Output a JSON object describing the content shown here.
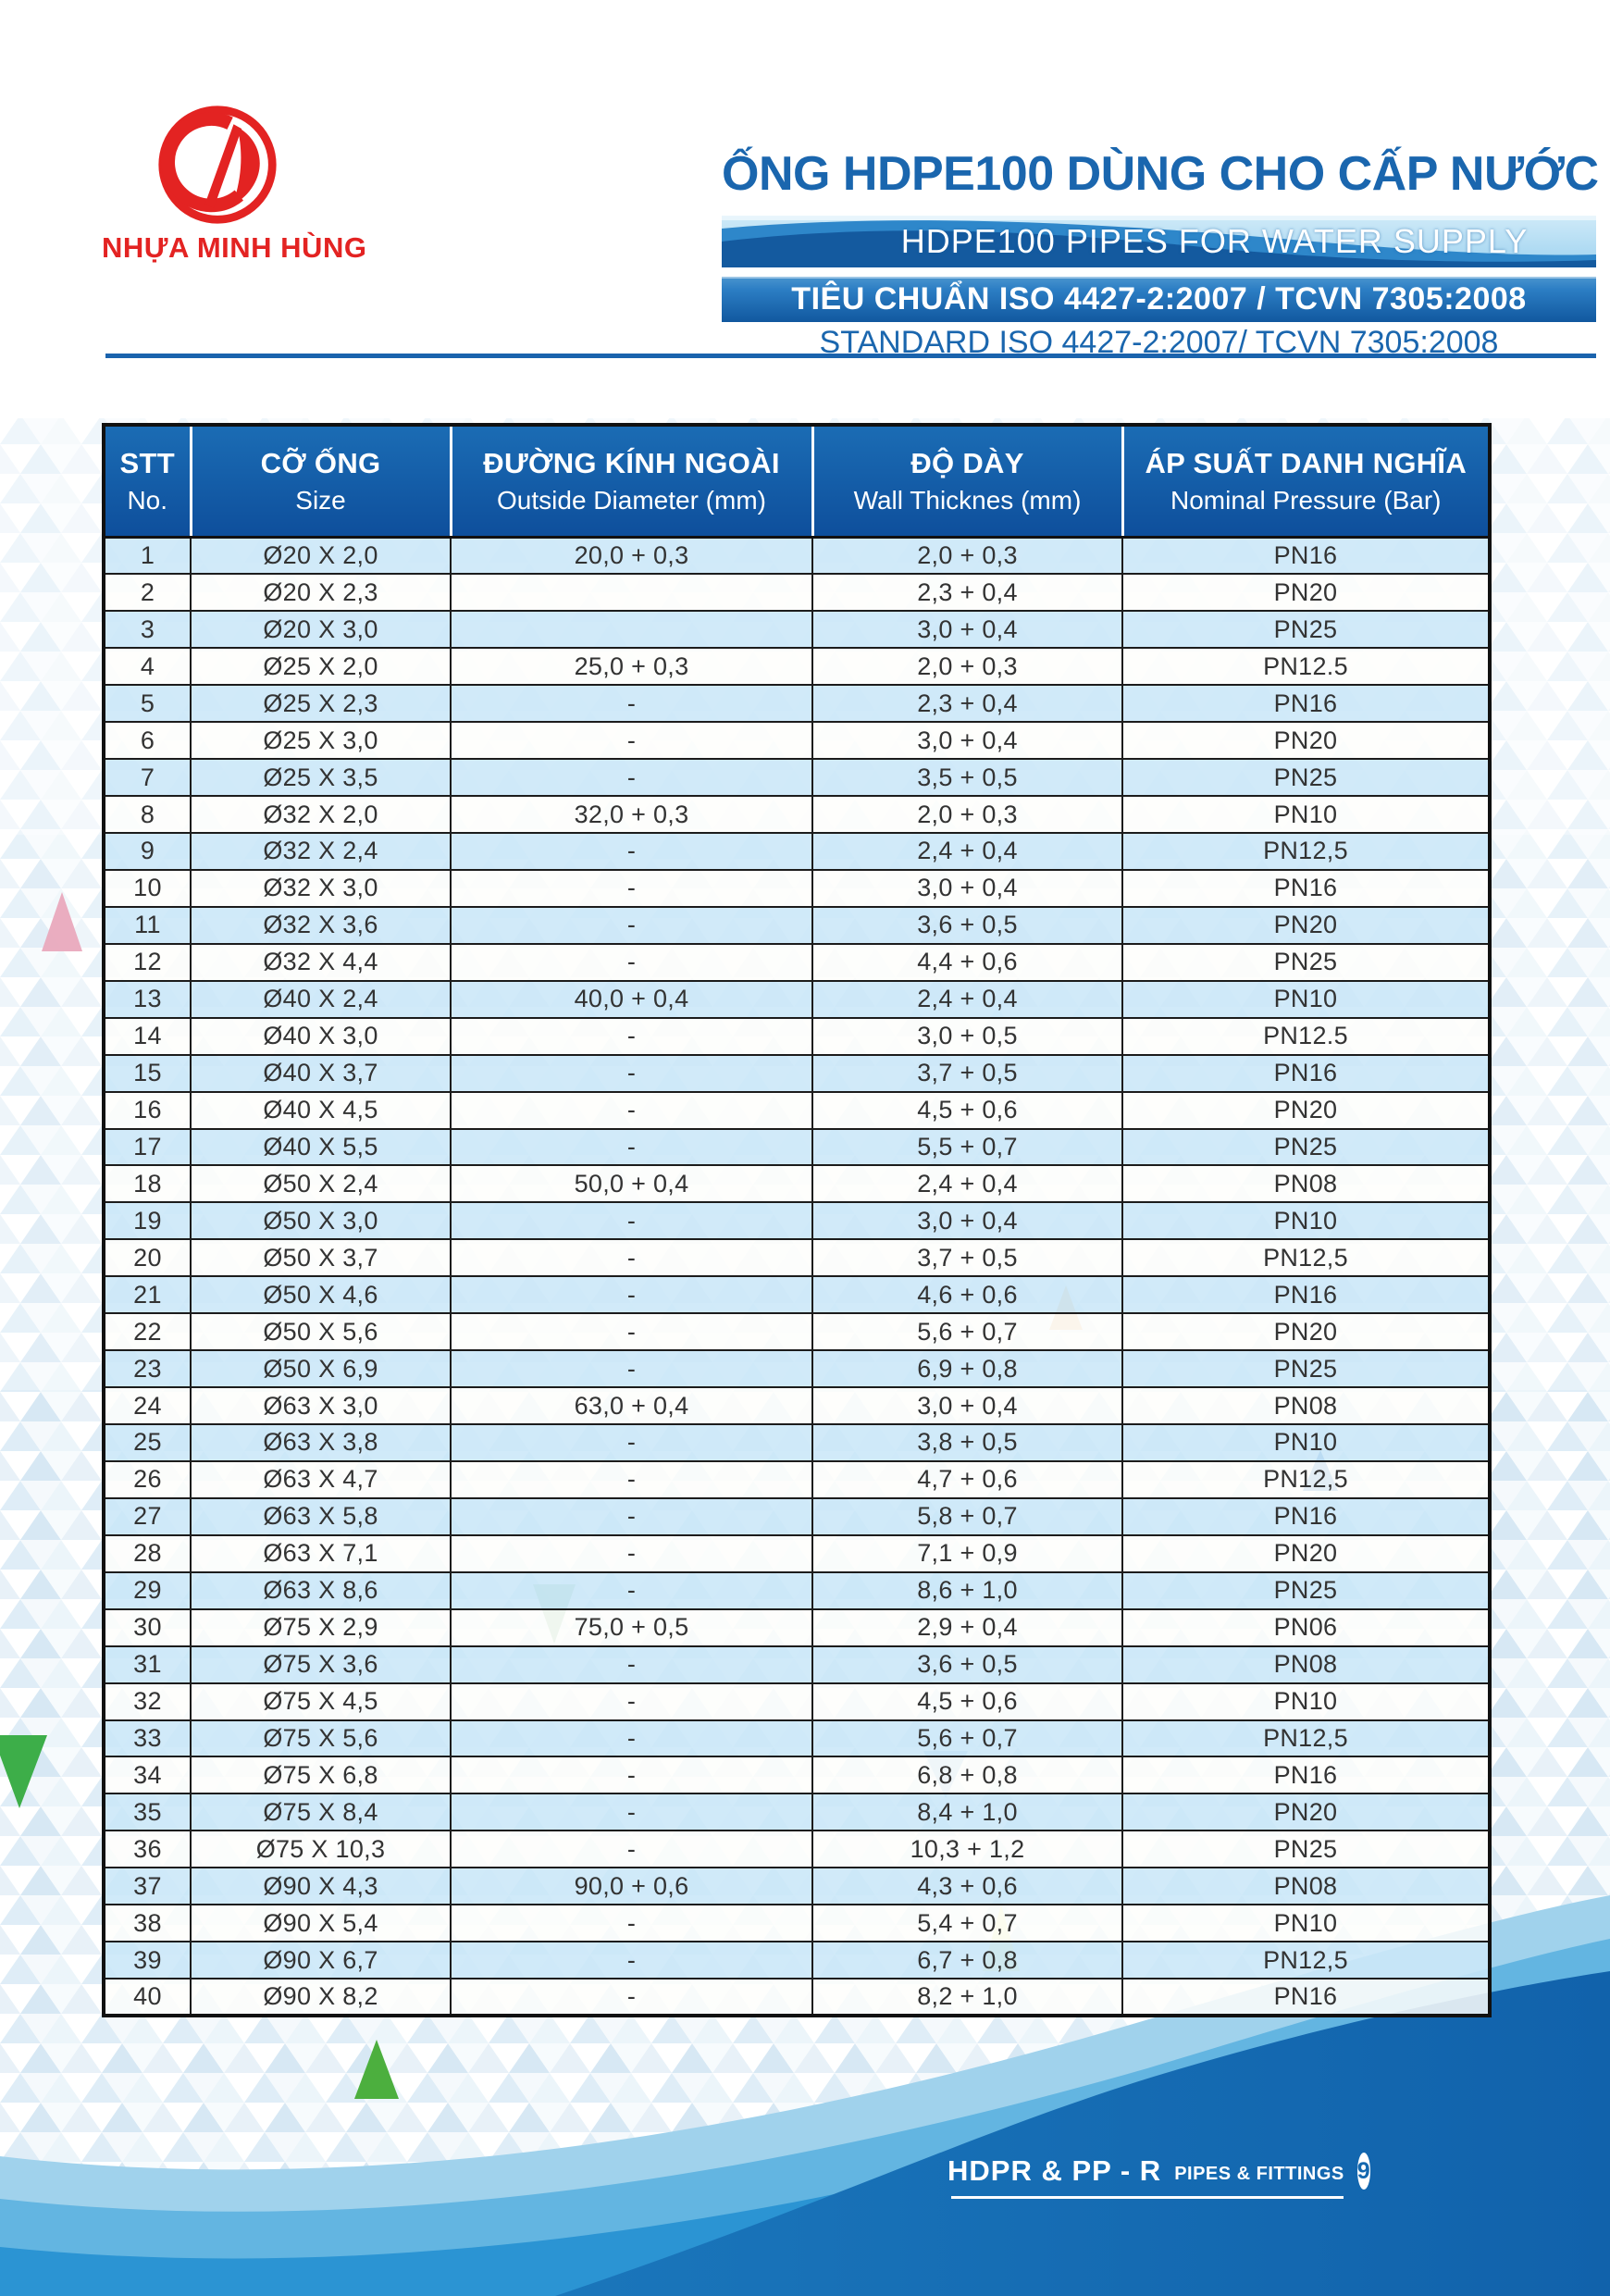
{
  "brand": {
    "name": "NHỰA MINH HÙNG",
    "logo_color": "#e32322"
  },
  "header": {
    "title_vi": "ỐNG HDPE100 DÙNG CHO CẤP NƯỚC",
    "title_en": "HDPE100 PIPES FOR WATER SUPPLY",
    "standard_vi": "TIÊU CHUẨN ISO 4427-2:2007 / TCVN 7305:2008",
    "standard_en": "STANDARD ISO 4427-2:2007/ TCVN 7305:2008"
  },
  "table": {
    "columns": [
      {
        "vi": "STT",
        "en": "No."
      },
      {
        "vi": "CỠ ỐNG",
        "en": "Size"
      },
      {
        "vi": "ĐƯỜNG KÍNH NGOÀI",
        "en": "Outside Diameter (mm)"
      },
      {
        "vi": "ĐỘ DÀY",
        "en": "Wall Thicknes (mm)"
      },
      {
        "vi": "ÁP SUẤT DANH NGHĨA",
        "en": "Nominal Pressure (Bar)"
      }
    ],
    "rows": [
      [
        "1",
        "Ø20 X 2,0",
        "20,0 + 0,3",
        "2,0 + 0,3",
        "PN16"
      ],
      [
        "2",
        "Ø20 X 2,3",
        "",
        "2,3 + 0,4",
        "PN20"
      ],
      [
        "3",
        "Ø20 X 3,0",
        "",
        "3,0 + 0,4",
        "PN25"
      ],
      [
        "4",
        "Ø25 X 2,0",
        "25,0 + 0,3",
        "2,0 + 0,3",
        "PN12.5"
      ],
      [
        "5",
        "Ø25 X 2,3",
        "-",
        "2,3 + 0,4",
        "PN16"
      ],
      [
        "6",
        "Ø25 X 3,0",
        "-",
        "3,0 + 0,4",
        "PN20"
      ],
      [
        "7",
        "Ø25 X 3,5",
        "-",
        "3,5 + 0,5",
        "PN25"
      ],
      [
        "8",
        "Ø32 X 2,0",
        "32,0 + 0,3",
        "2,0 + 0,3",
        "PN10"
      ],
      [
        "9",
        "Ø32 X 2,4",
        "-",
        "2,4 + 0,4",
        "PN12,5"
      ],
      [
        "10",
        "Ø32 X 3,0",
        "-",
        "3,0 + 0,4",
        "PN16"
      ],
      [
        "11",
        "Ø32 X 3,6",
        "-",
        "3,6 + 0,5",
        "PN20"
      ],
      [
        "12",
        "Ø32 X 4,4",
        "-",
        "4,4 + 0,6",
        "PN25"
      ],
      [
        "13",
        "Ø40 X 2,4",
        "40,0 + 0,4",
        "2,4 + 0,4",
        "PN10"
      ],
      [
        "14",
        "Ø40 X 3,0",
        "-",
        "3,0 + 0,5",
        "PN12.5"
      ],
      [
        "15",
        "Ø40 X 3,7",
        "-",
        "3,7 + 0,5",
        "PN16"
      ],
      [
        "16",
        "Ø40 X 4,5",
        "-",
        "4,5 + 0,6",
        "PN20"
      ],
      [
        "17",
        "Ø40 X 5,5",
        "-",
        "5,5 + 0,7",
        "PN25"
      ],
      [
        "18",
        "Ø50 X 2,4",
        "50,0 + 0,4",
        "2,4 + 0,4",
        "PN08"
      ],
      [
        "19",
        "Ø50 X 3,0",
        "-",
        "3,0 + 0,4",
        "PN10"
      ],
      [
        "20",
        "Ø50 X 3,7",
        "-",
        "3,7 + 0,5",
        "PN12,5"
      ],
      [
        "21",
        "Ø50 X 4,6",
        "-",
        "4,6 + 0,6",
        "PN16"
      ],
      [
        "22",
        "Ø50 X 5,6",
        "-",
        "5,6 + 0,7",
        "PN20"
      ],
      [
        "23",
        "Ø50 X 6,9",
        "-",
        "6,9 + 0,8",
        "PN25"
      ],
      [
        "24",
        "Ø63 X 3,0",
        "63,0 + 0,4",
        "3,0 + 0,4",
        "PN08"
      ],
      [
        "25",
        "Ø63 X 3,8",
        "-",
        "3,8 + 0,5",
        "PN10"
      ],
      [
        "26",
        "Ø63 X 4,7",
        "-",
        "4,7 + 0,6",
        "PN12,5"
      ],
      [
        "27",
        "Ø63 X 5,8",
        "-",
        "5,8 + 0,7",
        "PN16"
      ],
      [
        "28",
        "Ø63 X 7,1",
        "-",
        "7,1 + 0,9",
        "PN20"
      ],
      [
        "29",
        "Ø63 X 8,6",
        "-",
        "8,6 + 1,0",
        "PN25"
      ],
      [
        "30",
        "Ø75 X 2,9",
        "75,0 + 0,5",
        "2,9 + 0,4",
        "PN06"
      ],
      [
        "31",
        "Ø75 X 3,6",
        "-",
        "3,6 + 0,5",
        "PN08"
      ],
      [
        "32",
        "Ø75 X 4,5",
        "-",
        "4,5 + 0,6",
        "PN10"
      ],
      [
        "33",
        "Ø75 X 5,6",
        "-",
        "5,6 + 0,7",
        "PN12,5"
      ],
      [
        "34",
        "Ø75 X 6,8",
        "-",
        "6,8 + 0,8",
        "PN16"
      ],
      [
        "35",
        "Ø75 X 8,4",
        "-",
        "8,4 + 1,0",
        "PN20"
      ],
      [
        "36",
        "Ø75 X 10,3",
        "-",
        "10,3 + 1,2",
        "PN25"
      ],
      [
        "37",
        "Ø90 X 4,3",
        "90,0 + 0,6",
        "4,3 + 0,6",
        "PN08"
      ],
      [
        "38",
        "Ø90 X 5,4",
        "-",
        "5,4 + 0,7",
        "PN10"
      ],
      [
        "39",
        "Ø90 X 6,7",
        "-",
        "6,7 + 0,8",
        "PN12,5"
      ],
      [
        "40",
        "Ø90 X 8,2",
        "-",
        "8,2 + 1,0",
        "PN16"
      ]
    ]
  },
  "footer": {
    "brand_line": "HDPR & PP - R",
    "subtitle": "PIPES & FITTINGS",
    "page_number": "9"
  },
  "colors": {
    "title_blue": "#1a66ae",
    "table_header_blue": "#1565ae",
    "standard_band_blue": "#11589f",
    "row_alt_blue": "#cbe7f8",
    "brand_red": "#e32322",
    "wave_dark_blue": "#1468af",
    "wave_mid_blue": "#2b94d3"
  }
}
